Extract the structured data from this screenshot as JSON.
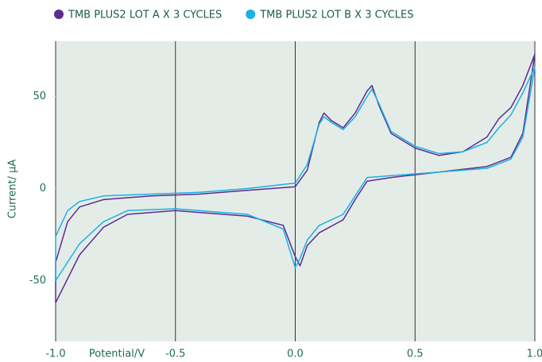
{
  "chart_data": {
    "type": "line",
    "xlabel": "Potential/V",
    "ylabel": "Current/ µA",
    "xlim": [
      -1.0,
      1.0
    ],
    "ylim": [
      -83,
      80
    ],
    "xticks": [
      {
        "value": -1,
        "label": "-1.0"
      },
      -0.5,
      {
        "value": 0,
        "label": "0.0"
      },
      0.5,
      {
        "value": 1,
        "label": "1.0"
      }
    ],
    "yticks": [
      -50,
      0,
      50
    ],
    "grid": true,
    "series": [
      {
        "name": "TMB PLUS2 LOT A X 3 CYCLES",
        "color": "#5a2d8e",
        "x": [
          -1.0,
          -0.95,
          -0.9,
          -0.8,
          -0.6,
          -0.4,
          -0.2,
          0.0,
          0.05,
          0.1,
          0.12,
          0.15,
          0.2,
          0.25,
          0.3,
          0.32,
          0.35,
          0.4,
          0.5,
          0.6,
          0.7,
          0.8,
          0.85,
          0.9,
          0.95,
          1.0,
          0.95,
          0.9,
          0.8,
          0.6,
          0.4,
          0.3,
          0.25,
          0.2,
          0.1,
          0.05,
          0.02,
          0.0,
          -0.05,
          -0.2,
          -0.5,
          -0.7,
          -0.8,
          -0.9,
          -1.0
        ],
        "values": [
          -40,
          -18,
          -10,
          -6,
          -4,
          -3,
          -1,
          1,
          10,
          36,
          41,
          37,
          33,
          41,
          53,
          56,
          45,
          30,
          22,
          18,
          20,
          28,
          38,
          44,
          56,
          73,
          30,
          17,
          12,
          9,
          6,
          4,
          -6,
          -17,
          -24,
          -31,
          -42,
          -37,
          -20,
          -15,
          -12,
          -14,
          -21,
          -36,
          -62
        ]
      },
      {
        "name": "TMB PLUS2 LOT B X 3 CYCLES",
        "color": "#1cb0e6",
        "x": [
          -1.0,
          -0.95,
          -0.9,
          -0.8,
          -0.6,
          -0.4,
          -0.2,
          0.0,
          0.05,
          0.1,
          0.12,
          0.15,
          0.2,
          0.25,
          0.3,
          0.32,
          0.35,
          0.4,
          0.5,
          0.6,
          0.7,
          0.8,
          0.85,
          0.9,
          0.95,
          1.0,
          0.95,
          0.9,
          0.8,
          0.6,
          0.4,
          0.3,
          0.25,
          0.2,
          0.1,
          0.05,
          0.02,
          0.0,
          -0.05,
          -0.2,
          -0.5,
          -0.7,
          -0.8,
          -0.9,
          -1.0
        ],
        "values": [
          -26,
          -12,
          -7,
          -4,
          -3,
          -2,
          0,
          3,
          13,
          35,
          39,
          36,
          32,
          39,
          50,
          54,
          46,
          31,
          23,
          19,
          20,
          25,
          33,
          40,
          52,
          66,
          28,
          16,
          11,
          9,
          7,
          6,
          -4,
          -14,
          -20,
          -28,
          -38,
          -43,
          -22,
          -14,
          -11,
          -12,
          -18,
          -30,
          -50
        ]
      }
    ]
  }
}
